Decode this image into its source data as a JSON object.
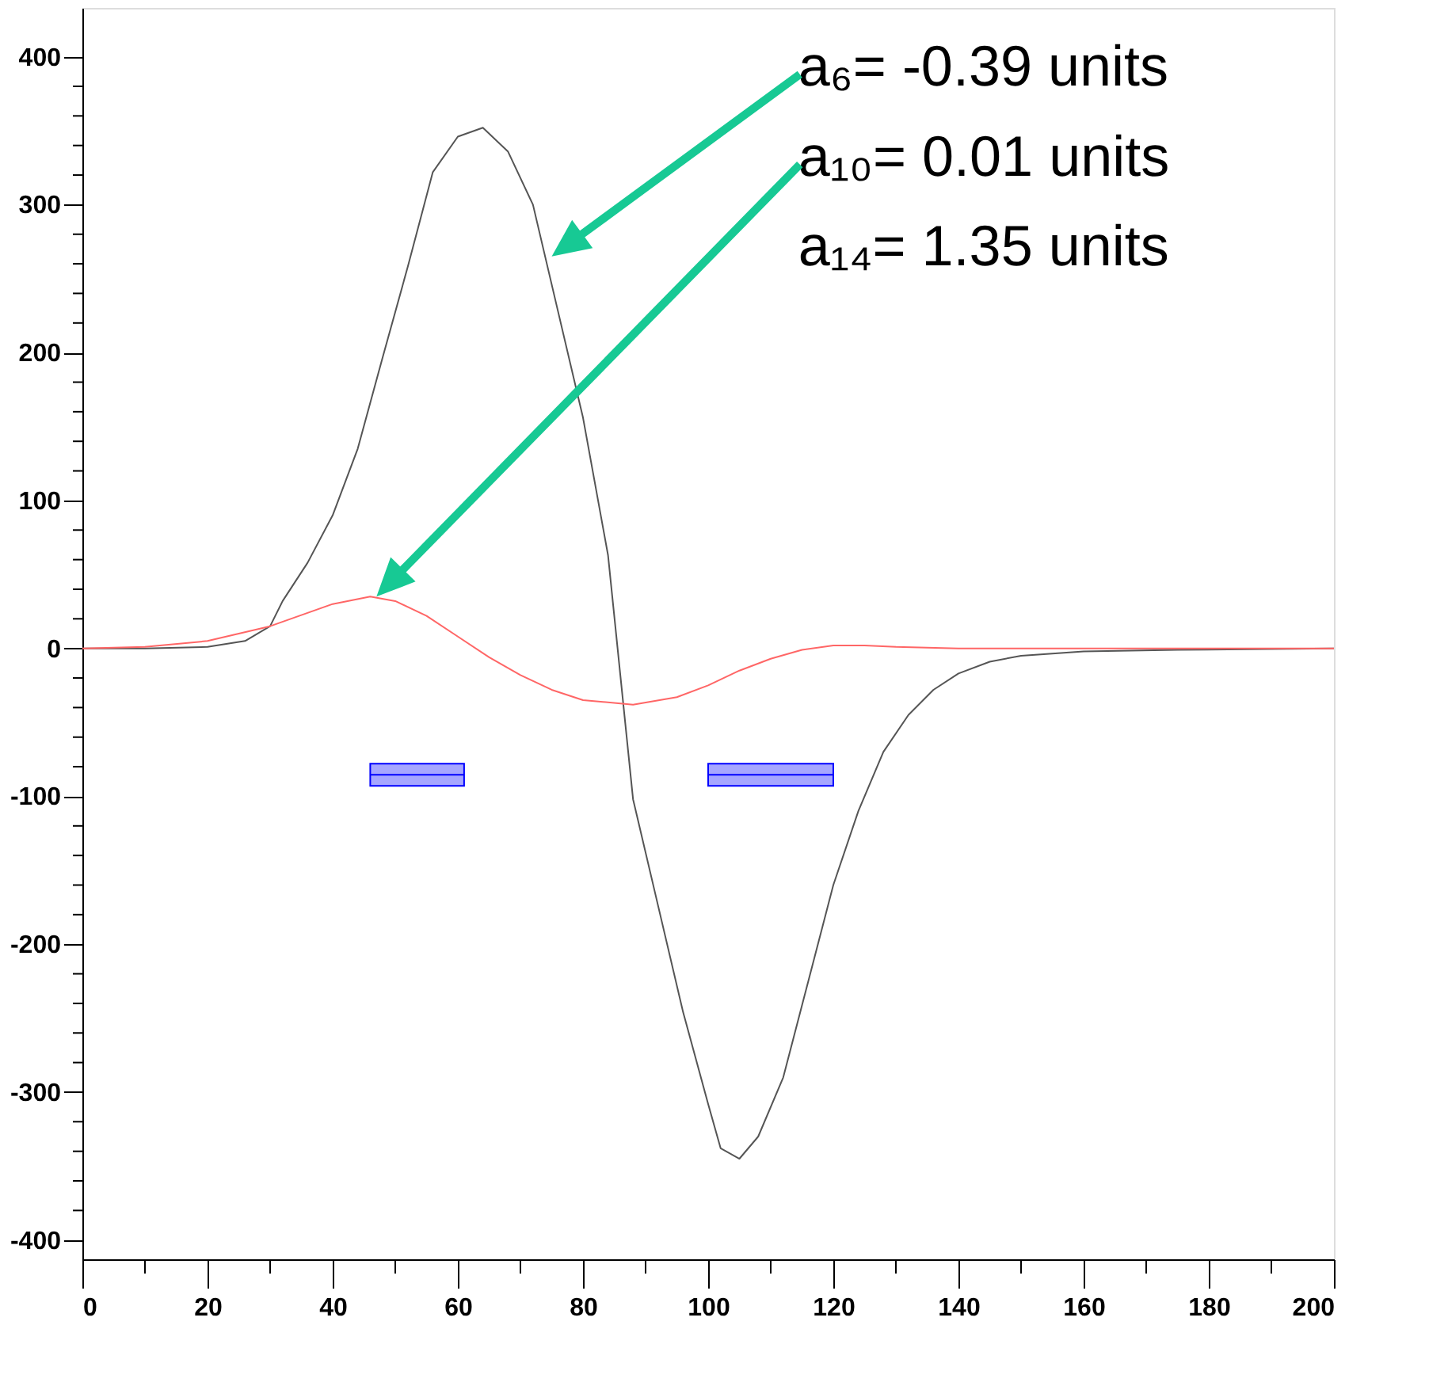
{
  "chart_data": {
    "type": "line",
    "xlim": [
      0,
      200
    ],
    "ylim": [
      -413,
      433
    ],
    "xticks": [
      0,
      {
        "value": 10,
        "label": null
      },
      20,
      {
        "value": 30,
        "label": null
      },
      40,
      {
        "value": 50,
        "label": null
      },
      60,
      {
        "value": 70,
        "label": null
      },
      80,
      {
        "value": 90,
        "label": null
      },
      100,
      {
        "value": 110,
        "label": null
      },
      120,
      {
        "value": 130,
        "label": null
      },
      140,
      {
        "value": 150,
        "label": null
      },
      160,
      {
        "value": 170,
        "label": null
      },
      180,
      {
        "value": 190,
        "label": null
      },
      200
    ],
    "yticks": [
      -400,
      {
        "value": -380,
        "label": null
      },
      {
        "value": -360,
        "label": null
      },
      {
        "value": -340,
        "label": null
      },
      {
        "value": -320,
        "label": null
      },
      -300,
      {
        "value": -280,
        "label": null
      },
      {
        "value": -260,
        "label": null
      },
      {
        "value": -240,
        "label": null
      },
      {
        "value": -220,
        "label": null
      },
      -200,
      {
        "value": -180,
        "label": null
      },
      {
        "value": -160,
        "label": null
      },
      {
        "value": -140,
        "label": null
      },
      {
        "value": -120,
        "label": null
      },
      -100,
      {
        "value": -80,
        "label": null
      },
      {
        "value": -60,
        "label": null
      },
      {
        "value": -40,
        "label": null
      },
      {
        "value": -20,
        "label": null
      },
      0,
      {
        "value": 20,
        "label": null
      },
      {
        "value": 40,
        "label": null
      },
      {
        "value": 60,
        "label": null
      },
      {
        "value": 80,
        "label": null
      },
      100,
      {
        "value": 120,
        "label": null
      },
      {
        "value": 140,
        "label": null
      },
      {
        "value": 160,
        "label": null
      },
      {
        "value": 180,
        "label": null
      },
      200,
      {
        "value": 220,
        "label": null
      },
      {
        "value": 240,
        "label": null
      },
      {
        "value": 260,
        "label": null
      },
      {
        "value": 280,
        "label": null
      },
      300,
      {
        "value": 320,
        "label": null
      },
      {
        "value": 340,
        "label": null
      },
      {
        "value": 360,
        "label": null
      },
      {
        "value": 380,
        "label": null
      },
      400
    ],
    "grid": false,
    "marker": "none",
    "line_style": "solid",
    "series": [
      {
        "color": "#555555",
        "x": [
          0,
          10,
          20,
          26,
          30,
          32,
          36,
          40,
          44,
          48,
          52,
          56,
          60,
          64,
          68,
          72,
          76,
          80,
          84,
          88,
          92,
          96,
          100,
          102,
          105,
          108,
          112,
          116,
          120,
          124,
          128,
          132,
          136,
          140,
          145,
          150,
          160,
          175,
          200
        ],
        "values": [
          0,
          0,
          1,
          5,
          15,
          32,
          58,
          90,
          135,
          197,
          258,
          322,
          346,
          352,
          336,
          300,
          228,
          156,
          63,
          -102,
          -174,
          -246,
          -308,
          -338,
          -345,
          -330,
          -290,
          -225,
          -160,
          -110,
          -70,
          -45,
          -28,
          -17,
          -9,
          -5,
          -2,
          -1,
          0
        ]
      },
      {
        "color": "#ff6666",
        "x": [
          0,
          10,
          20,
          30,
          40,
          46,
          50,
          55,
          60,
          65,
          70,
          75,
          80,
          88,
          95,
          100,
          105,
          110,
          115,
          120,
          125,
          130,
          140,
          200
        ],
        "values": [
          0,
          1,
          5,
          15,
          30,
          35,
          32,
          22,
          8,
          -6,
          -18,
          -28,
          -35,
          -38,
          -33,
          -25,
          -15,
          -7,
          -1,
          2,
          2,
          1,
          0,
          0
        ]
      },
      {
        "type": "bar",
        "color": "#0000ff",
        "x": [
          53.5,
          110
        ],
        "xerrors": [
          7.5,
          10
        ],
        "base": [
          -93,
          -93
        ],
        "values": [
          15,
          15
        ]
      }
    ],
    "annotations": [
      "a₆= -0.39 units",
      "a₁₀=  0.01 units",
      "a₁₄=  1.35 units"
    ]
  }
}
